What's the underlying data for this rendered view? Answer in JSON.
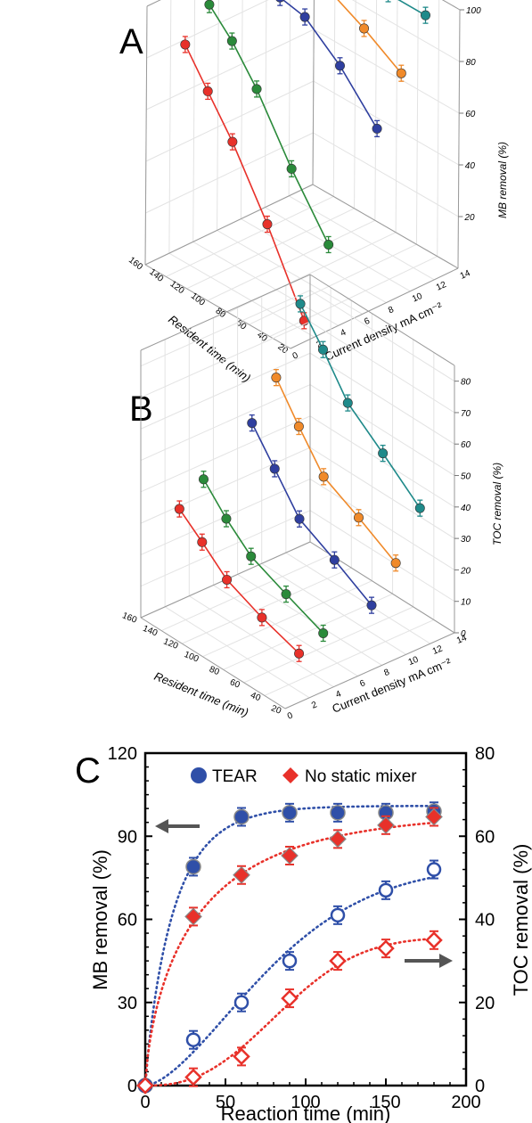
{
  "colors": {
    "red": "#e8312a",
    "green": "#2a8a3a",
    "blue": "#2f3f9f",
    "orange": "#f08a2a",
    "teal": "#1f8a8a",
    "tear": "#2f4fa8",
    "nomix": "#e8312a",
    "arrow": "#555555"
  },
  "chart_data": [
    {
      "type": "line3d",
      "panel": "A",
      "xlabel": "Resident time (min)",
      "ylabel": "Current density  mA cm⁻²",
      "zlabel": "MB removal (%)",
      "x_ticks": [
        "160",
        "140",
        "120",
        "100",
        "80",
        "60",
        "40",
        "20"
      ],
      "y_ticks": [
        "0",
        "2",
        "4",
        "6",
        "8",
        "10",
        "12",
        "14"
      ],
      "z_ticks": [
        "20",
        "40",
        "60",
        "80",
        "100"
      ],
      "series": [
        {
          "color": "red",
          "points": [
            [
              146,
              84
            ],
            [
              124,
              71
            ],
            [
              100,
              57
            ],
            [
              66,
              33
            ],
            [
              30,
              4
            ]
          ]
        },
        {
          "color": "green",
          "points": [
            [
              146,
              95
            ],
            [
              124,
              86
            ],
            [
              100,
              73
            ],
            [
              66,
              50
            ],
            [
              30,
              29
            ]
          ]
        },
        {
          "color": "blue",
          "points": [
            [
              146,
              96
            ],
            [
              124,
              94
            ],
            [
              100,
              92
            ],
            [
              66,
              81
            ],
            [
              30,
              65
            ]
          ]
        },
        {
          "color": "orange",
          "points": [
            [
              146,
              100
            ],
            [
              124,
              99
            ],
            [
              100,
              98
            ],
            [
              66,
              91
            ],
            [
              30,
              82
            ]
          ]
        },
        {
          "color": "teal",
          "points": [
            [
              146,
              100
            ],
            [
              124,
              100
            ],
            [
              100,
              100
            ],
            [
              66,
              100
            ],
            [
              30,
              100
            ]
          ]
        }
      ]
    },
    {
      "type": "line3d",
      "panel": "B",
      "xlabel": "Resident time (min)",
      "ylabel": "Current density  mA cm⁻²",
      "zlabel": "TOC removal (%)",
      "x_ticks": [
        "160",
        "140",
        "120",
        "100",
        "80",
        "60",
        "40",
        "20"
      ],
      "y_ticks": [
        "0",
        "2",
        "4",
        "6",
        "8",
        "10",
        "12",
        "14"
      ],
      "z_ticks": [
        "0",
        "10",
        "20",
        "30",
        "40",
        "50",
        "60",
        "70",
        "80"
      ],
      "series": [
        {
          "color": "red",
          "points": [
            [
              146,
              34
            ],
            [
              124,
              28
            ],
            [
              100,
              21
            ],
            [
              66,
              16
            ],
            [
              30,
              12
            ]
          ]
        },
        {
          "color": "green",
          "points": [
            [
              146,
              40
            ],
            [
              124,
              32
            ],
            [
              100,
              25
            ],
            [
              66,
              20
            ],
            [
              30,
              15
            ]
          ]
        },
        {
          "color": "blue",
          "points": [
            [
              146,
              51
            ],
            [
              124,
              41
            ],
            [
              100,
              30
            ],
            [
              66,
              24
            ],
            [
              30,
              17
            ]
          ]
        },
        {
          "color": "orange",
          "points": [
            [
              146,
              62
            ],
            [
              124,
              51
            ],
            [
              100,
              40
            ],
            [
              66,
              34
            ],
            [
              30,
              27
            ]
          ]
        },
        {
          "color": "teal",
          "points": [
            [
              146,
              82
            ],
            [
              124,
              72
            ],
            [
              100,
              60
            ],
            [
              66,
              51
            ],
            [
              30,
              41
            ]
          ]
        }
      ]
    },
    {
      "type": "scatter",
      "panel": "C",
      "xlabel": "Reaction time (min)",
      "ylabel": "MB removal  (%)",
      "y2label": "TOC  removal  (%)",
      "xlim": [
        0,
        200
      ],
      "ylim": [
        0,
        120
      ],
      "y2lim": [
        0,
        80
      ],
      "x_ticks": [
        "0",
        "50",
        "100",
        "150",
        "200"
      ],
      "y_ticks": [
        "0",
        "30",
        "60",
        "90",
        "120"
      ],
      "y2_ticks": [
        "0",
        "20",
        "40",
        "60",
        "80"
      ],
      "legend": [
        "TEAR",
        "No static mixer"
      ],
      "legend_position": "top",
      "x": [
        0,
        30,
        60,
        90,
        120,
        150,
        180
      ],
      "series": [
        {
          "name": "TEAR",
          "axis": "left",
          "marker": "filled-circle",
          "values": [
            0,
            79,
            97,
            98.5,
            98.5,
            98.5,
            99
          ]
        },
        {
          "name": "No static mixer",
          "axis": "left",
          "marker": "filled-diamond",
          "values": [
            0,
            61,
            76,
            83,
            89,
            94,
            97
          ]
        },
        {
          "name": "TEAR",
          "axis": "right",
          "marker": "open-circle",
          "values": [
            0,
            11,
            20,
            30,
            41,
            47,
            52
          ]
        },
        {
          "name": "No static mixer",
          "axis": "right",
          "marker": "open-diamond",
          "values": [
            0,
            2,
            7,
            21,
            30,
            33,
            35
          ]
        }
      ]
    }
  ]
}
